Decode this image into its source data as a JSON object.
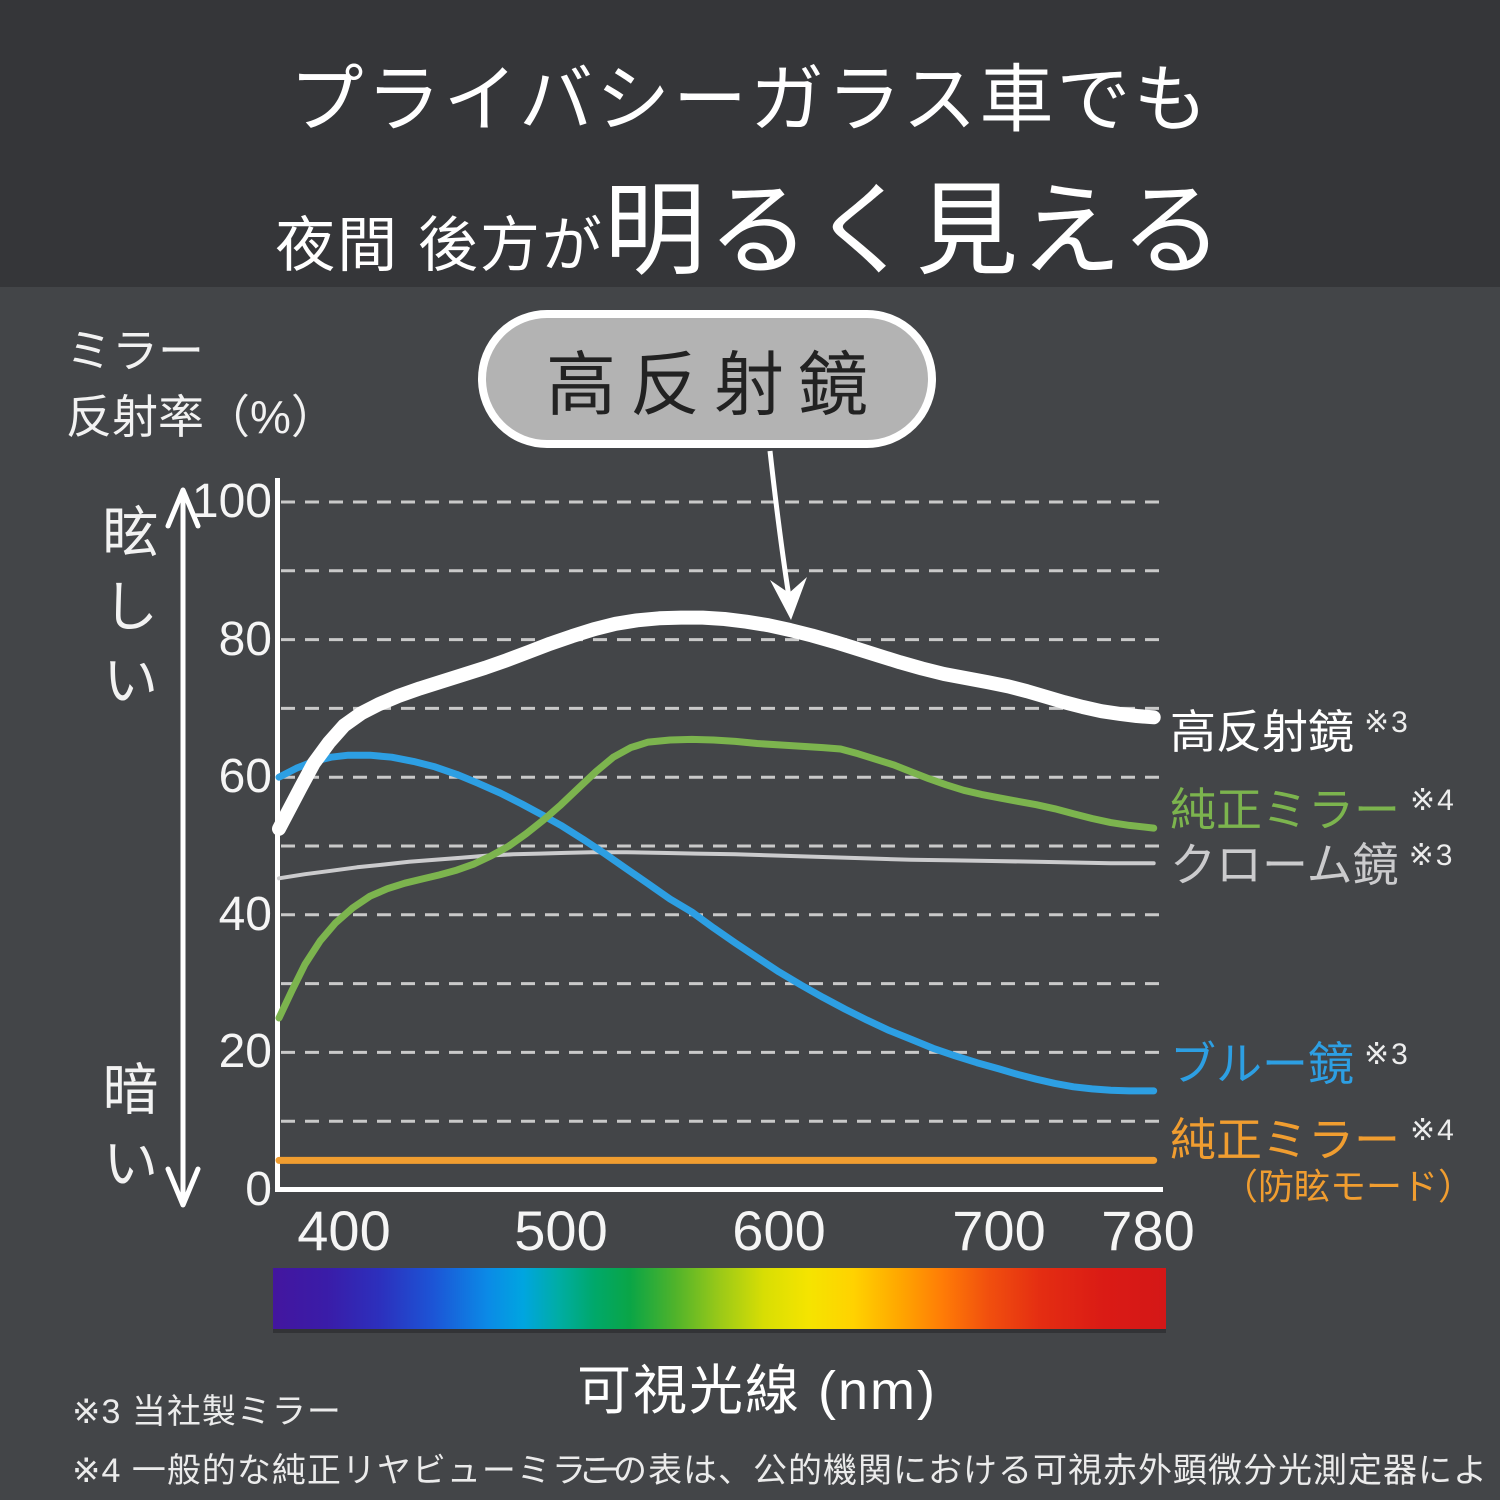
{
  "header": {
    "title_line1": "プライバシーガラス車でも",
    "title_line2_small": "夜間 後方が",
    "title_line2_large": "明るく見える"
  },
  "callout": {
    "label": "高反射鏡"
  },
  "y_axis": {
    "title_line1": "ミラー",
    "title_line2": "反射率（%）",
    "top_label": "眩しい",
    "bottom_label": "暗い"
  },
  "x_axis": {
    "unit_label": "可視光線 (nm)"
  },
  "footnotes": {
    "note3": "※3 当社製ミラー",
    "note4": "※4 一般的な純正リヤビューミラー",
    "measurement": "この表は、公的機関における可視赤外顕微分光測定器による測定結果"
  },
  "colors": {
    "background": "#434548",
    "header_background": "#353639",
    "gridline": "#c9c9c9",
    "axis": "#ffffff",
    "callout_fill": "#b3b3b3"
  },
  "chart_data": {
    "type": "line",
    "title": "ミラー反射率（%） vs 可視光線 (nm)",
    "xlabel": "可視光線 (nm)",
    "ylabel": "ミラー反射率（%）",
    "xlim": [
      370,
      783
    ],
    "ylim": [
      0,
      100
    ],
    "x_ticks": [
      400,
      500,
      600,
      700,
      780
    ],
    "y_ticks": [
      100,
      80,
      60,
      40,
      20,
      0
    ],
    "grid_step": 10,
    "grid": "horizontal dashed",
    "legend_position": "right-edge labels",
    "series": [
      {
        "name": "高反射鏡",
        "note": "※3",
        "color": "#ffffff",
        "width": 14,
        "points": [
          [
            370,
            52.5
          ],
          [
            375,
            55.5
          ],
          [
            380,
            58.5
          ],
          [
            386,
            62
          ],
          [
            393,
            65
          ],
          [
            400,
            67.5
          ],
          [
            408,
            69.3
          ],
          [
            416,
            70.6
          ],
          [
            425,
            71.8
          ],
          [
            435,
            72.9
          ],
          [
            445,
            73.9
          ],
          [
            455,
            74.9
          ],
          [
            465,
            75.9
          ],
          [
            475,
            77
          ],
          [
            485,
            78.2
          ],
          [
            495,
            79.4
          ],
          [
            505,
            80.5
          ],
          [
            515,
            81.5
          ],
          [
            525,
            82.3
          ],
          [
            535,
            82.8
          ],
          [
            545,
            83.1
          ],
          [
            555,
            83.2
          ],
          [
            565,
            83.2
          ],
          [
            575,
            83
          ],
          [
            585,
            82.6
          ],
          [
            595,
            82.1
          ],
          [
            605,
            81.4
          ],
          [
            615,
            80.6
          ],
          [
            625,
            79.7
          ],
          [
            635,
            78.7
          ],
          [
            645,
            77.7
          ],
          [
            655,
            76.7
          ],
          [
            665,
            75.8
          ],
          [
            675,
            75
          ],
          [
            685,
            74.4
          ],
          [
            695,
            73.8
          ],
          [
            705,
            73.2
          ],
          [
            715,
            72.5
          ],
          [
            725,
            71.7
          ],
          [
            735,
            70.9
          ],
          [
            745,
            70.2
          ],
          [
            755,
            69.6
          ],
          [
            765,
            69.2
          ],
          [
            774,
            68.9
          ],
          [
            783,
            68.7
          ]
        ]
      },
      {
        "name": "純正ミラー",
        "note": "※4",
        "color": "#7cb44e",
        "width": 7,
        "points": [
          [
            370,
            25
          ],
          [
            376,
            29
          ],
          [
            382,
            32.8
          ],
          [
            389,
            36.2
          ],
          [
            396,
            38.8
          ],
          [
            404,
            41
          ],
          [
            412,
            42.7
          ],
          [
            420,
            43.8
          ],
          [
            428,
            44.6
          ],
          [
            436,
            45.2
          ],
          [
            444,
            45.8
          ],
          [
            452,
            46.5
          ],
          [
            460,
            47.4
          ],
          [
            468,
            48.6
          ],
          [
            476,
            50
          ],
          [
            484,
            51.8
          ],
          [
            492,
            53.8
          ],
          [
            500,
            56
          ],
          [
            508,
            58.4
          ],
          [
            516,
            60.8
          ],
          [
            524,
            62.9
          ],
          [
            532,
            64.3
          ],
          [
            540,
            65.1
          ],
          [
            550,
            65.4
          ],
          [
            560,
            65.5
          ],
          [
            570,
            65.4
          ],
          [
            580,
            65.2
          ],
          [
            590,
            64.9
          ],
          [
            600,
            64.7
          ],
          [
            610,
            64.5
          ],
          [
            620,
            64.3
          ],
          [
            628,
            64.1
          ],
          [
            636,
            63.4
          ],
          [
            644,
            62.6
          ],
          [
            652,
            61.8
          ],
          [
            660,
            60.8
          ],
          [
            668,
            59.8
          ],
          [
            676,
            58.9
          ],
          [
            684,
            58.1
          ],
          [
            692,
            57.5
          ],
          [
            700,
            57
          ],
          [
            710,
            56.5
          ],
          [
            720,
            56
          ],
          [
            730,
            55.4
          ],
          [
            740,
            54.7
          ],
          [
            750,
            54
          ],
          [
            760,
            53.4
          ],
          [
            770,
            53
          ],
          [
            783,
            52.6
          ]
        ]
      },
      {
        "name": "クローム鏡",
        "note": "※3",
        "color": "#cbcbcd",
        "width": 4,
        "points": [
          [
            370,
            45.3
          ],
          [
            382,
            45.9
          ],
          [
            394,
            46.4
          ],
          [
            406,
            46.9
          ],
          [
            418,
            47.3
          ],
          [
            430,
            47.7
          ],
          [
            442,
            48
          ],
          [
            454,
            48.3
          ],
          [
            466,
            48.6
          ],
          [
            478,
            48.8
          ],
          [
            490,
            48.9
          ],
          [
            502,
            49
          ],
          [
            514,
            49.1
          ],
          [
            530,
            49.1
          ],
          [
            546,
            49
          ],
          [
            562,
            48.9
          ],
          [
            580,
            48.8
          ],
          [
            600,
            48.6
          ],
          [
            620,
            48.4
          ],
          [
            640,
            48.2
          ],
          [
            660,
            48
          ],
          [
            680,
            47.9
          ],
          [
            700,
            47.8
          ],
          [
            720,
            47.7
          ],
          [
            740,
            47.6
          ],
          [
            760,
            47.5
          ],
          [
            783,
            47.5
          ]
        ]
      },
      {
        "name": "ブルー鏡",
        "note": "※3",
        "color": "#2d9fe3",
        "width": 7,
        "points": [
          [
            370,
            60
          ],
          [
            378,
            61.3
          ],
          [
            386,
            62.3
          ],
          [
            394,
            62.9
          ],
          [
            402,
            63.2
          ],
          [
            412,
            63.2
          ],
          [
            422,
            62.9
          ],
          [
            432,
            62.3
          ],
          [
            442,
            61.5
          ],
          [
            452,
            60.4
          ],
          [
            462,
            59.1
          ],
          [
            472,
            57.7
          ],
          [
            482,
            56.1
          ],
          [
            492,
            54.4
          ],
          [
            500,
            53
          ],
          [
            510,
            51
          ],
          [
            520,
            48.9
          ],
          [
            530,
            46.7
          ],
          [
            540,
            44.5
          ],
          [
            550,
            42.3
          ],
          [
            560,
            40.4
          ],
          [
            570,
            38.1
          ],
          [
            580,
            35.9
          ],
          [
            590,
            33.8
          ],
          [
            600,
            31.7
          ],
          [
            610,
            29.8
          ],
          [
            620,
            28
          ],
          [
            630,
            26.3
          ],
          [
            640,
            24.7
          ],
          [
            650,
            23.2
          ],
          [
            660,
            21.9
          ],
          [
            670,
            20.6
          ],
          [
            680,
            19.5
          ],
          [
            690,
            18.5
          ],
          [
            700,
            17.6
          ],
          [
            710,
            16.8
          ],
          [
            720,
            16.1
          ],
          [
            730,
            15.5
          ],
          [
            740,
            15
          ],
          [
            750,
            14.7
          ],
          [
            760,
            14.5
          ],
          [
            770,
            14.4
          ],
          [
            783,
            14.4
          ]
        ]
      },
      {
        "name": "純正ミラー",
        "sub": "（防眩モード）",
        "note": "※4",
        "color": "#f09d30",
        "width": 7,
        "points": [
          [
            370,
            4.3
          ],
          [
            470,
            4.3
          ],
          [
            570,
            4.3
          ],
          [
            670,
            4.3
          ],
          [
            783,
            4.3
          ]
        ]
      }
    ]
  }
}
